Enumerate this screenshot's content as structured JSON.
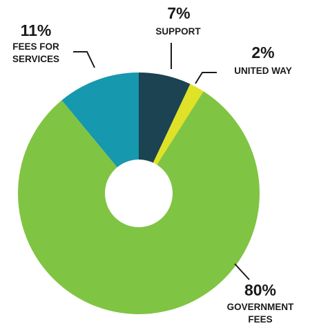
{
  "chart_data": {
    "type": "pie",
    "variant": "donut",
    "title": "",
    "legend": "none",
    "slices": [
      {
        "pct_label": "7%",
        "value": 7,
        "label_lines": [
          "SUPPORT"
        ],
        "color": "#1b4351"
      },
      {
        "pct_label": "2%",
        "value": 2,
        "label_lines": [
          "UNITED WAY"
        ],
        "color": "#dfe226"
      },
      {
        "pct_label": "80%",
        "value": 80,
        "label_lines": [
          "GOVERNMENT",
          "FEES"
        ],
        "color": "#80c443"
      },
      {
        "pct_label": "11%",
        "value": 11,
        "label_lines": [
          "FEES FOR",
          "SERVICES"
        ],
        "color": "#1698ae"
      }
    ]
  }
}
